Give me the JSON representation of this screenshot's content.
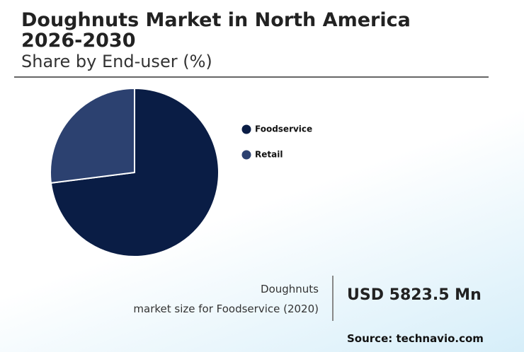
{
  "chart_data": {
    "type": "pie",
    "title": "Doughnuts Market in North America 2026-2030",
    "subtitle": "Share by End-user (%)",
    "categories": [
      "Foodservice",
      "Retail"
    ],
    "values": [
      73,
      27
    ],
    "colors": [
      "#0a1d45",
      "#2c4170"
    ]
  },
  "callout": {
    "label_line1": "Doughnuts",
    "label_line2": "market size for Foodservice (2020)",
    "value": "USD 5823.5 Mn"
  },
  "source": "Source: technavio.com"
}
